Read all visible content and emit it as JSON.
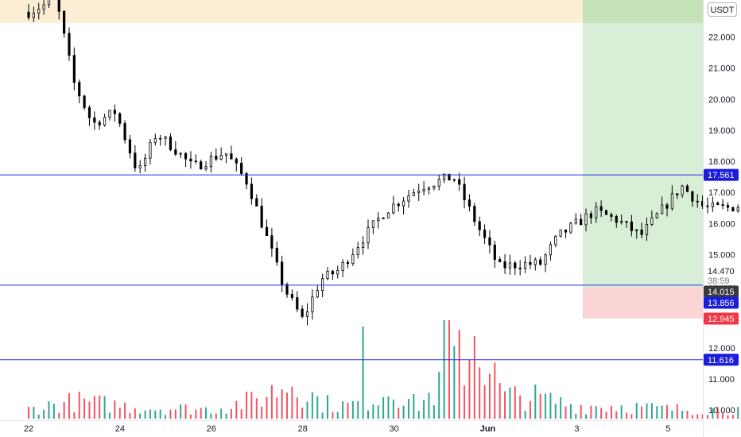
{
  "currency_badge": "USDT",
  "colors": {
    "up": "#089981",
    "down": "#f23645",
    "candle": "#000000",
    "level_line": "#2a2eea",
    "supply_zone": "#fbeed4",
    "target_zone": "#d8eed6",
    "stop_zone": "#fbd5d6",
    "price_tag": "#3a3a3a",
    "entry_tag": "#1c1cde",
    "stop_tag": "#f23645",
    "level_tag": "#1c1cde"
  },
  "chart_data": {
    "type": "candlestick",
    "x_tick_labels": [
      "22",
      "24",
      "26",
      "28",
      "30",
      "Jun",
      "3",
      "5"
    ],
    "y_tick_labels": [
      "10.000",
      "11.000",
      "12.000",
      "13.000",
      "14.000",
      "15.000",
      "16.000",
      "17.000",
      "18.000",
      "19.000",
      "20.000",
      "21.000",
      "22.000"
    ],
    "ylim": [
      9.83,
      23.05
    ],
    "currency": "USDT",
    "horizontal_levels": [
      17.561,
      14.015,
      11.616
    ],
    "price_labels": {
      "current_price": "14.470",
      "countdown": "38:59",
      "entry": "14.015",
      "level_2": "13.856",
      "stop": "12.945",
      "level_top": "17.561",
      "level_bottom": "11.616"
    },
    "zones": [
      {
        "name": "supply",
        "from": 22.45,
        "to": 23.05
      },
      {
        "name": "target",
        "from": 13.95,
        "to": 22.45
      },
      {
        "name": "stop",
        "from": 12.945,
        "to": 13.95
      }
    ],
    "anchor_points": [
      [
        0.0,
        22.8
      ],
      [
        0.6,
        23.2
      ],
      [
        1.0,
        20.5
      ],
      [
        1.4,
        19.2
      ],
      [
        1.9,
        19.6
      ],
      [
        2.4,
        17.6
      ],
      [
        2.8,
        18.9
      ],
      [
        3.2,
        18.4
      ],
      [
        3.6,
        17.8
      ],
      [
        4.3,
        18.3
      ],
      [
        4.8,
        17.3
      ],
      [
        5.2,
        15.6
      ],
      [
        5.6,
        13.9
      ],
      [
        6.0,
        12.9
      ],
      [
        6.4,
        14.2
      ],
      [
        6.8,
        14.5
      ],
      [
        7.2,
        15.3
      ],
      [
        7.8,
        16.4
      ],
      [
        8.6,
        17.2
      ],
      [
        9.3,
        17.5
      ],
      [
        9.8,
        16.0
      ],
      [
        10.3,
        14.6
      ],
      [
        10.8,
        14.7
      ],
      [
        11.2,
        14.7
      ],
      [
        11.6,
        15.6
      ],
      [
        12.4,
        16.4
      ],
      [
        12.9,
        16.1
      ],
      [
        13.4,
        15.6
      ],
      [
        13.9,
        16.5
      ],
      [
        14.3,
        17.2
      ],
      [
        14.8,
        16.5
      ],
      [
        15.3,
        16.5
      ],
      [
        16.0,
        16.7
      ],
      [
        16.6,
        16.6
      ],
      [
        17.0,
        15.8
      ],
      [
        17.5,
        14.6
      ],
      [
        18.0,
        14.0
      ],
      [
        18.6,
        13.9
      ],
      [
        19.1,
        14.0
      ],
      [
        19.6,
        13.1
      ],
      [
        20.1,
        12.4
      ],
      [
        20.6,
        12.25
      ],
      [
        21.1,
        12.9
      ],
      [
        21.6,
        13.2
      ],
      [
        22.0,
        12.9
      ],
      [
        22.4,
        12.5
      ],
      [
        22.8,
        12.8
      ],
      [
        23.3,
        13.2
      ],
      [
        23.9,
        13.4
      ],
      [
        24.4,
        13.6
      ],
      [
        24.8,
        13.1
      ],
      [
        25.3,
        13.0
      ],
      [
        25.8,
        12.95
      ],
      [
        26.3,
        13.15
      ],
      [
        26.8,
        13.75
      ],
      [
        27.2,
        14.4
      ],
      [
        27.4,
        14.55
      ]
    ],
    "volume_scale": [
      0,
      3.2
    ],
    "volume_anchor_points": [
      [
        0.0,
        0.3
      ],
      [
        1.0,
        0.55
      ],
      [
        2.5,
        0.35
      ],
      [
        4.0,
        0.3
      ],
      [
        5.0,
        0.6
      ],
      [
        5.8,
        1.2
      ],
      [
        6.4,
        0.5
      ],
      [
        7.0,
        0.4
      ],
      [
        7.6,
        0.7
      ],
      [
        8.0,
        1.0
      ],
      [
        8.5,
        0.4
      ],
      [
        9.2,
        1.2
      ],
      [
        9.8,
        2.5
      ],
      [
        10.4,
        0.7
      ],
      [
        11.0,
        0.7
      ],
      [
        12.0,
        0.4
      ],
      [
        13.0,
        0.4
      ],
      [
        14.0,
        0.3
      ],
      [
        15.0,
        0.3
      ],
      [
        16.5,
        0.3
      ],
      [
        18.0,
        0.3
      ],
      [
        20.0,
        0.25
      ],
      [
        22.0,
        0.25
      ],
      [
        24.0,
        0.2
      ],
      [
        26.5,
        0.2
      ],
      [
        27.0,
        1.6
      ],
      [
        27.4,
        0.5
      ]
    ],
    "volume_spikes": [
      [
        7.35,
        2.9
      ],
      [
        9.15,
        3.1
      ],
      [
        9.4,
        2.8
      ],
      [
        9.75,
        2.6
      ],
      [
        27.2,
        2.5
      ]
    ]
  }
}
